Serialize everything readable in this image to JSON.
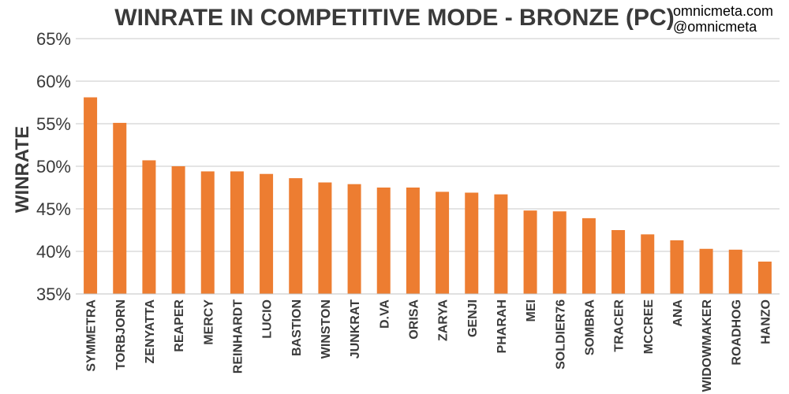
{
  "watermark": {
    "line1": "omnicmeta.com",
    "line2": "@omnicmeta"
  },
  "chart_data": {
    "type": "bar",
    "title": "WINRATE IN COMPETITIVE MODE - BRONZE (PC)",
    "xlabel": "",
    "ylabel": "WINRATE",
    "ylim": [
      35,
      65
    ],
    "yticks": [
      35,
      40,
      45,
      50,
      55,
      60,
      65
    ],
    "ytick_labels": [
      "35%",
      "40%",
      "45%",
      "50%",
      "55%",
      "60%",
      "65%"
    ],
    "grid": true,
    "bar_color": "#ED7D31",
    "categories": [
      "SYMMETRA",
      "TORBJORN",
      "ZENYATTA",
      "REAPER",
      "MERCY",
      "REINHARDT",
      "LUCIO",
      "BASTION",
      "WINSTON",
      "JUNKRAT",
      "D.VA",
      "ORISA",
      "ZARYA",
      "GENJI",
      "PHARAH",
      "MEI",
      "SOLDIER76",
      "SOMBRA",
      "TRACER",
      "MCCREE",
      "ANA",
      "WIDOWMAKER",
      "ROADHOG",
      "HANZO"
    ],
    "values": [
      58.1,
      55.1,
      50.7,
      50.0,
      49.4,
      49.4,
      49.1,
      48.6,
      48.1,
      47.9,
      47.5,
      47.5,
      47.0,
      46.9,
      46.7,
      44.8,
      44.7,
      43.9,
      42.5,
      42.0,
      41.3,
      40.3,
      40.2,
      38.8
    ]
  }
}
